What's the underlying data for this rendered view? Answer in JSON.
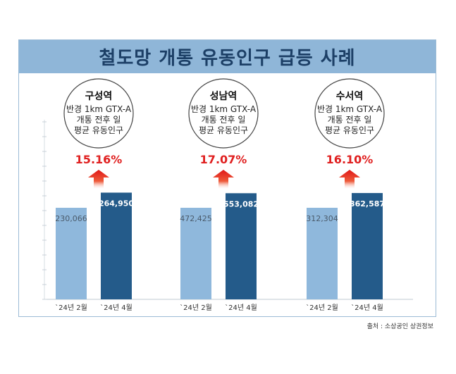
{
  "title": "철도망 개통 유동인구 급등 사례",
  "source": "출처 : 소상공인 상권정보",
  "chart_data": {
    "type": "bar",
    "categories": [
      "`24년 2월",
      "`24년 4월"
    ],
    "groups": [
      {
        "name": "구성역",
        "description": [
          "반경 1km GTX-A",
          "개통 전후 일",
          "평균 유동인구"
        ],
        "change": "15.16%",
        "values": [
          230066,
          264950
        ],
        "labels": [
          "230,066",
          "264,950"
        ]
      },
      {
        "name": "성남역",
        "description": [
          "반경 1km GTX-A",
          "개통 전후 일",
          "평균 유동인구"
        ],
        "change": "17.07%",
        "values": [
          472425,
          553082
        ],
        "labels": [
          "472,425",
          "553,082"
        ]
      },
      {
        "name": "수서역",
        "description": [
          "반경 1km GTX-A",
          "개통 전후 일",
          "평균 유동인구"
        ],
        "change": "16.10%",
        "values": [
          312304,
          362587
        ],
        "labels": [
          "312,304",
          "362,587"
        ]
      }
    ],
    "bar_values_are_per_group_scaled": true,
    "colors": {
      "before": "#8fb8dc",
      "after": "#245b8a",
      "arrow": "#e02020"
    },
    "grid": false
  }
}
